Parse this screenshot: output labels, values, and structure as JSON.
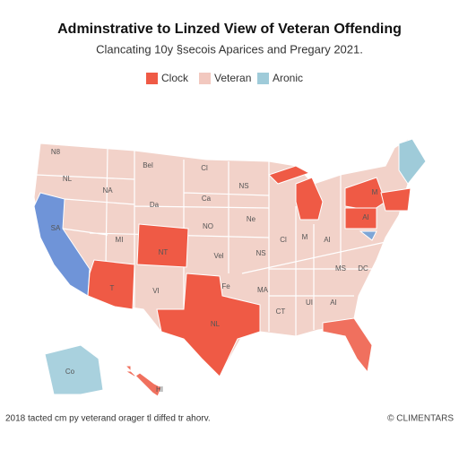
{
  "title": "Adminstrative to Linzed View of Veteran Offending",
  "subtitle": "Clancating 10y §secois Aparices and Pregary 2021.",
  "legend": [
    {
      "name": "Clock",
      "color": "#ef5a45"
    },
    {
      "name": "Veteran",
      "color": "#f2c8bf"
    },
    {
      "name": "Aronic",
      "color": "#9fcbd9"
    }
  ],
  "base_color": "#f2d2c9",
  "regions": [
    {
      "label": "SA",
      "color": "#6f94d8"
    },
    {
      "label": "T",
      "color": "#ef5a45"
    },
    {
      "label": "NT",
      "color": "#ef5a45"
    },
    {
      "label": "NL",
      "color": "#ef5a45"
    },
    {
      "label": null,
      "color": "#f0705e"
    },
    {
      "label": null,
      "color": "#ef5a45"
    },
    {
      "label": null,
      "color": "#ef5a45"
    },
    {
      "label": "M",
      "color": "#ef5a45"
    },
    {
      "label": "AI",
      "color": "#ef5a45"
    },
    {
      "label": null,
      "color": "#ef5a45"
    },
    {
      "label": null,
      "color": "#9fcbd9"
    },
    {
      "label": null,
      "color": "#7ea6d6"
    },
    {
      "label": "Co",
      "color": "#a9d1de"
    },
    {
      "label": null,
      "color": "#f0705e"
    }
  ],
  "labels": [
    "N8",
    "Bel",
    "Cl",
    "NL",
    "NA",
    "Da",
    "Ca",
    "NS",
    "Ne",
    "MI",
    "NO",
    "Vel",
    "VI",
    "Fe",
    "MA",
    "NS",
    "Cl",
    "M",
    "AI",
    "CT",
    "UI",
    "AI",
    "DC",
    "MS",
    "HI"
  ],
  "footnote": "2018 tacted cm py veterand orager tl diffed tr ahorv.",
  "credit": "© CLIMENTARS"
}
